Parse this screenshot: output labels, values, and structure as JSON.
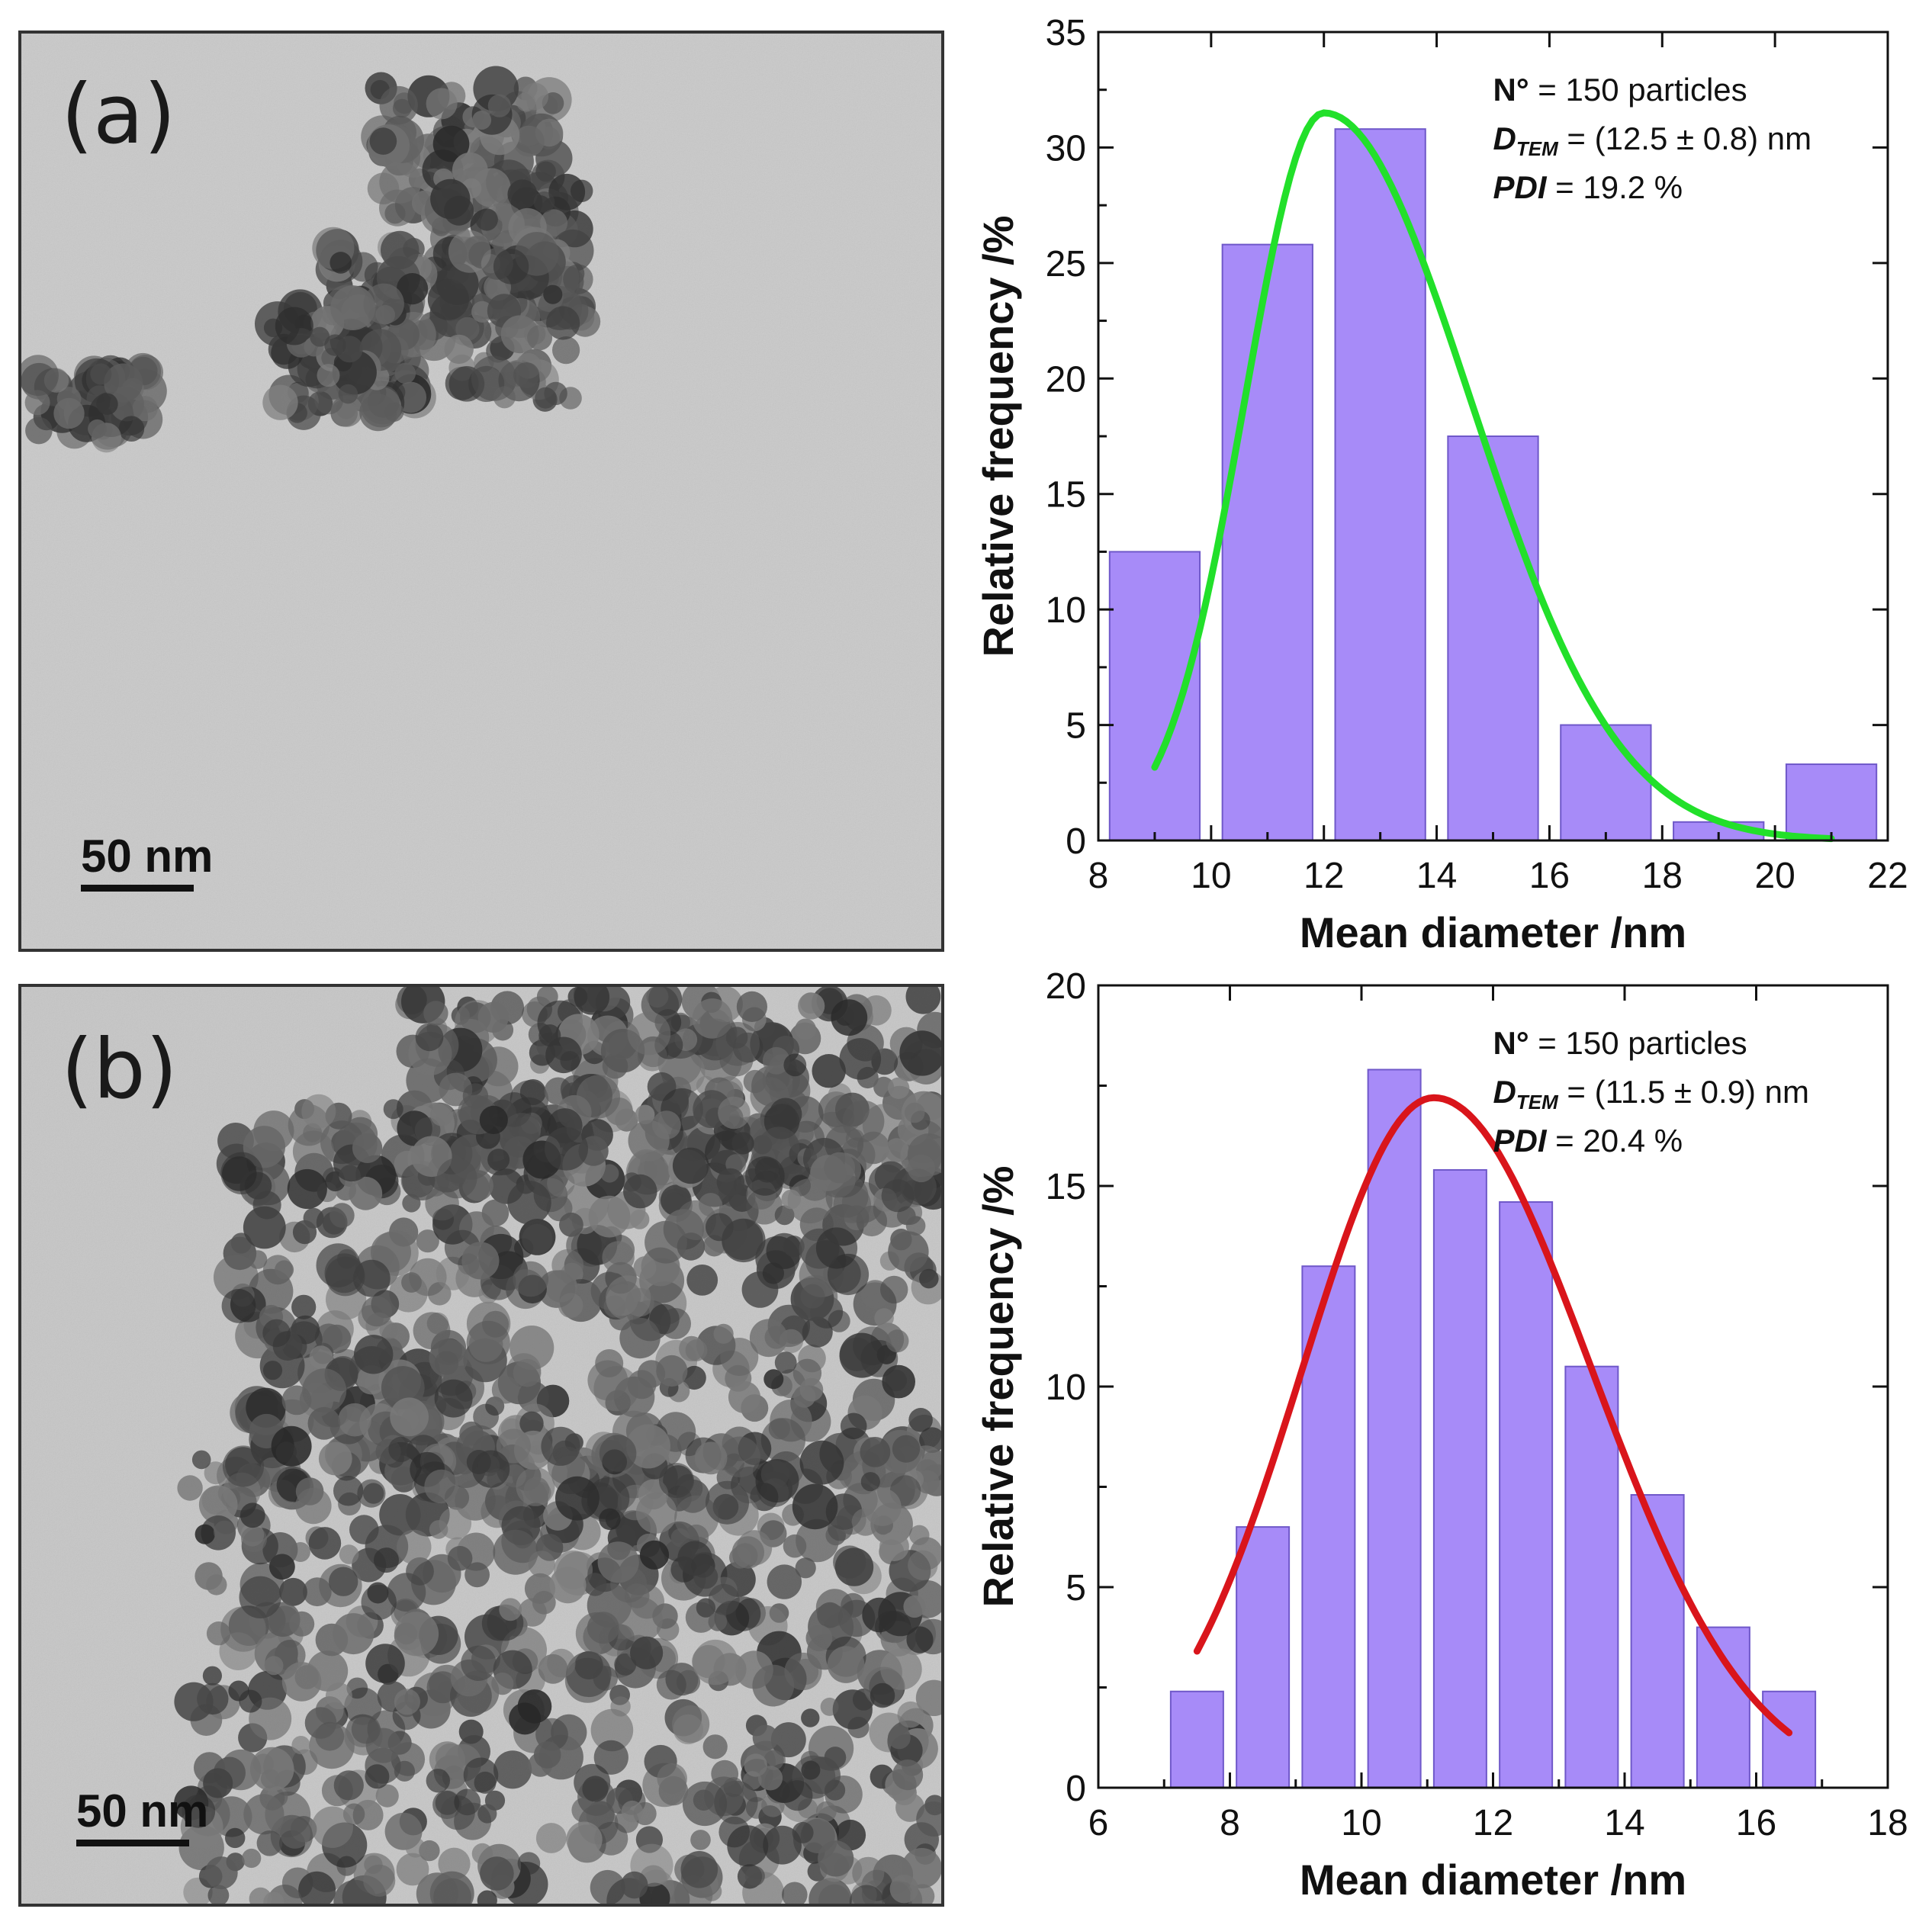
{
  "panels": [
    {
      "label": "(a)",
      "scale_bar": "50 nm"
    },
    {
      "label": "(b)",
      "scale_bar": "50 nm"
    }
  ],
  "chart_data": [
    {
      "type": "bar",
      "bar_color": "#a78bf8",
      "fit_color": "#22e02a",
      "x": [
        9,
        11,
        13,
        15,
        17,
        19,
        21
      ],
      "values": [
        12.5,
        25.8,
        30.8,
        17.5,
        5.0,
        0.8,
        3.3
      ],
      "bin_width": 1.6,
      "fit": {
        "amplitude": 31.5,
        "peak": 12.0,
        "sigma_left": 1.4,
        "sigma_right": 2.6,
        "range": [
          9,
          21
        ]
      },
      "xlabel": "Mean diameter /nm",
      "ylabel": "Relative frequency /%",
      "xlim": [
        8,
        22
      ],
      "ylim": [
        0,
        35
      ],
      "xticks": [
        "8",
        "10",
        "12",
        "14",
        "16",
        "18",
        "20",
        "22"
      ],
      "yticks": [
        "0",
        "5",
        "10",
        "15",
        "20",
        "25",
        "30",
        "35"
      ],
      "annotations": {
        "count_label": "N°",
        "count_value": "= 150 particles",
        "dtem_label": "D",
        "dtem_sub": "TEM",
        "dtem_value": "= (12.5 ± 0.8) nm",
        "pdi_label": "PDI",
        "pdi_value": "= 19.2 %"
      }
    },
    {
      "type": "bar",
      "bar_color": "#a78bf8",
      "fit_color": "#d9151b",
      "x": [
        7.5,
        8.5,
        9.5,
        10.5,
        11.5,
        12.5,
        13.5,
        14.5,
        15.5,
        16.5
      ],
      "values": [
        2.4,
        6.5,
        13.0,
        17.9,
        15.4,
        14.6,
        10.5,
        7.3,
        4.0,
        2.4
      ],
      "bin_width": 0.8,
      "fit": {
        "amplitude": 17.2,
        "peak": 11.1,
        "sigma_left": 2.0,
        "sigma_right": 2.4,
        "range": [
          7.5,
          16.5
        ]
      },
      "xlabel": "Mean diameter /nm",
      "ylabel": "Relative frequency /%",
      "xlim": [
        6,
        18
      ],
      "ylim": [
        0,
        20
      ],
      "xticks": [
        "6",
        "8",
        "10",
        "12",
        "14",
        "16",
        "18"
      ],
      "yticks": [
        "0",
        "5",
        "10",
        "15",
        "20"
      ],
      "annotations": {
        "count_label": "N°",
        "count_value": "= 150 particles",
        "dtem_label": "D",
        "dtem_sub": "TEM",
        "dtem_value": "= (11.5 ± 0.9) nm",
        "pdi_label": "PDI",
        "pdi_value": "= 20.4 %"
      }
    }
  ]
}
